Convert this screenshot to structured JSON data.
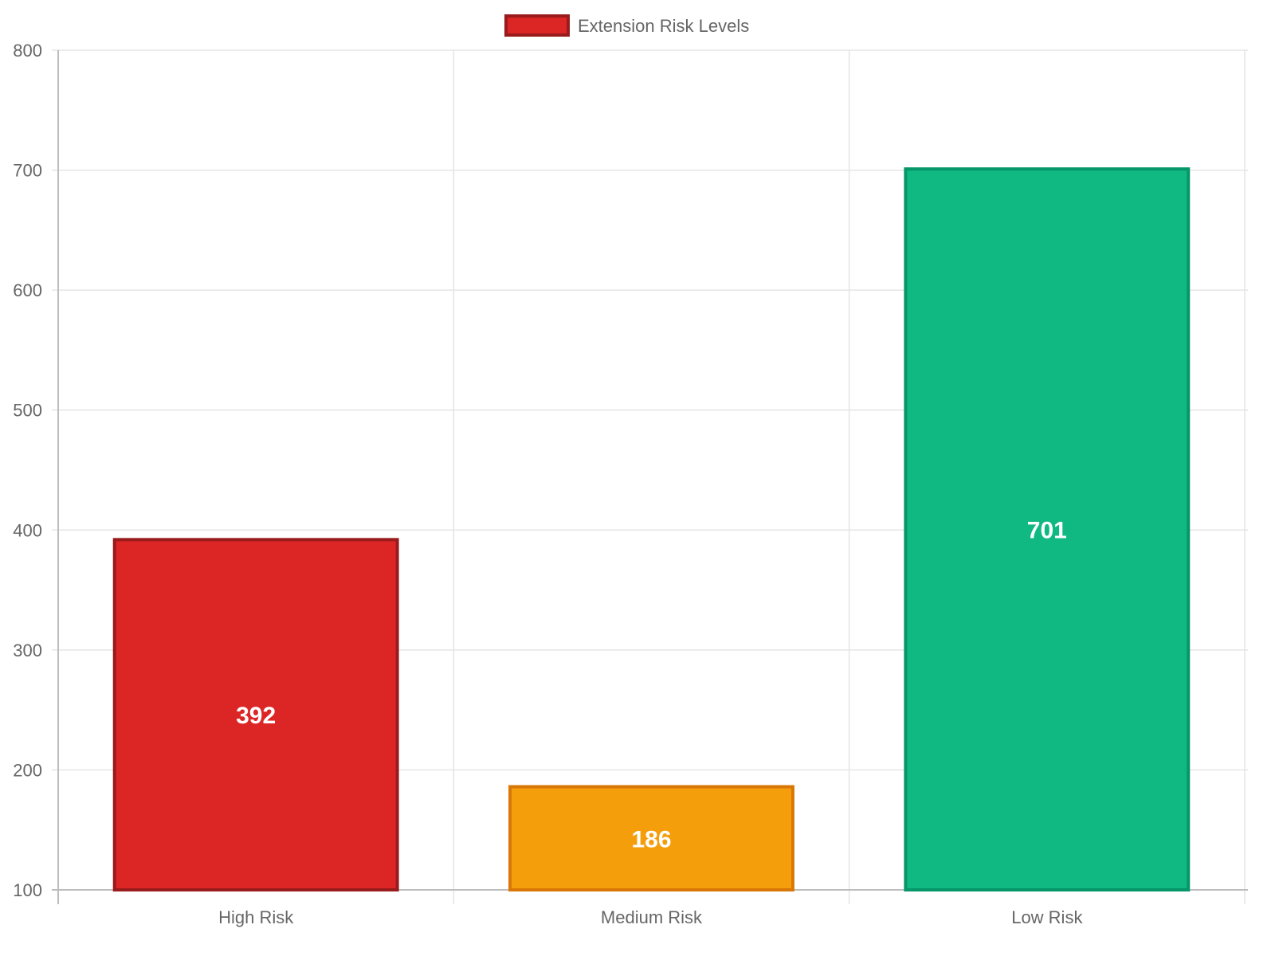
{
  "chart_data": {
    "type": "bar",
    "categories": [
      "High Risk",
      "Medium Risk",
      "Low Risk"
    ],
    "series": [
      {
        "name": "Extension Risk Levels",
        "values": [
          392,
          186,
          701
        ]
      }
    ],
    "bar_colors": [
      "#dc2626",
      "#f59e0b",
      "#10b981"
    ],
    "bar_border_colors": [
      "#991b1b",
      "#d97706",
      "#059669"
    ],
    "ylim": [
      100,
      800
    ],
    "yticks": [
      100,
      200,
      300,
      400,
      500,
      600,
      700,
      800
    ],
    "grid": true,
    "legend_position": "top-center",
    "data_labels": true
  },
  "colors": {
    "grid": "#e5e5e5",
    "axis": "#bdbdbd",
    "tick_text": "#666666",
    "label_text": "#ffffff"
  }
}
